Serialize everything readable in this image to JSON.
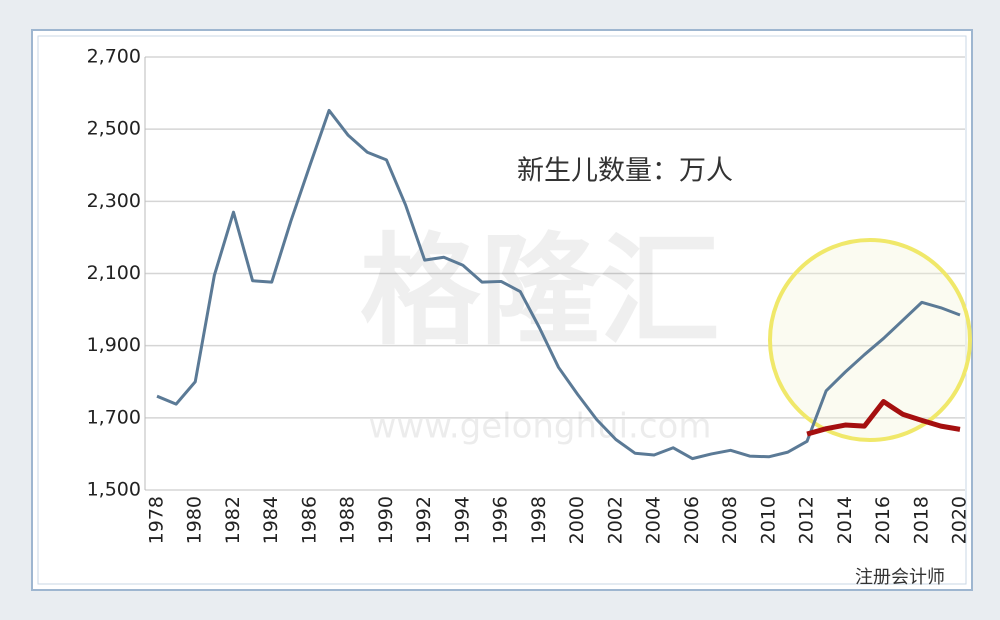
{
  "chart_data": {
    "type": "line",
    "annotation": "新生儿数量：万人",
    "watermark": "格隆汇",
    "watermark_url": "www.gelonghui.com",
    "source": "注册会计师",
    "categories": [
      "1978",
      null,
      "1980",
      null,
      "1982",
      null,
      "1984",
      null,
      "1986",
      null,
      "1988",
      null,
      "1990",
      null,
      "1992",
      null,
      "1994",
      null,
      "1996",
      null,
      "1998",
      null,
      "2000",
      null,
      "2002",
      null,
      "2004",
      null,
      "2006",
      null,
      "2008",
      null,
      "2010",
      null,
      "2012",
      null,
      "2014",
      null,
      "2016",
      null,
      "2018",
      null,
      "2020"
    ],
    "series": [
      {
        "color": "#5b7a96",
        "values": [
          1760,
          1738,
          1800,
          2095,
          2270,
          2080,
          2076,
          2245,
          2400,
          2552,
          2483,
          2436,
          2415,
          2290,
          2137,
          2145,
          2123,
          2076,
          2078,
          2050,
          1950,
          1840,
          1765,
          1695,
          1640,
          1602,
          1597,
          1617,
          1587,
          1600,
          1610,
          1594,
          1592,
          1605,
          1635,
          1775,
          1827,
          1875,
          1920,
          1970,
          2020,
          2005,
          1985
        ]
      },
      {
        "color": "#a50f0f",
        "values": [
          null,
          null,
          null,
          null,
          null,
          null,
          null,
          null,
          null,
          null,
          null,
          null,
          null,
          null,
          null,
          null,
          null,
          null,
          null,
          null,
          null,
          null,
          null,
          null,
          null,
          null,
          null,
          null,
          null,
          null,
          null,
          null,
          null,
          null,
          1655,
          1670,
          1680,
          1677,
          1745,
          1710,
          1693,
          1677,
          1668
        ]
      }
    ],
    "ylim": [
      1500,
      2700
    ],
    "yticks": [
      {
        "value": 1500,
        "label": "1,500"
      },
      {
        "value": 1700,
        "label": "1,700"
      },
      {
        "value": 1900,
        "label": "1,900"
      },
      {
        "value": 2100,
        "label": "2,100"
      },
      {
        "value": 2300,
        "label": "2,300"
      },
      {
        "value": 2500,
        "label": "2,500"
      },
      {
        "value": 2700,
        "label": "2,700"
      }
    ],
    "grid": true
  }
}
